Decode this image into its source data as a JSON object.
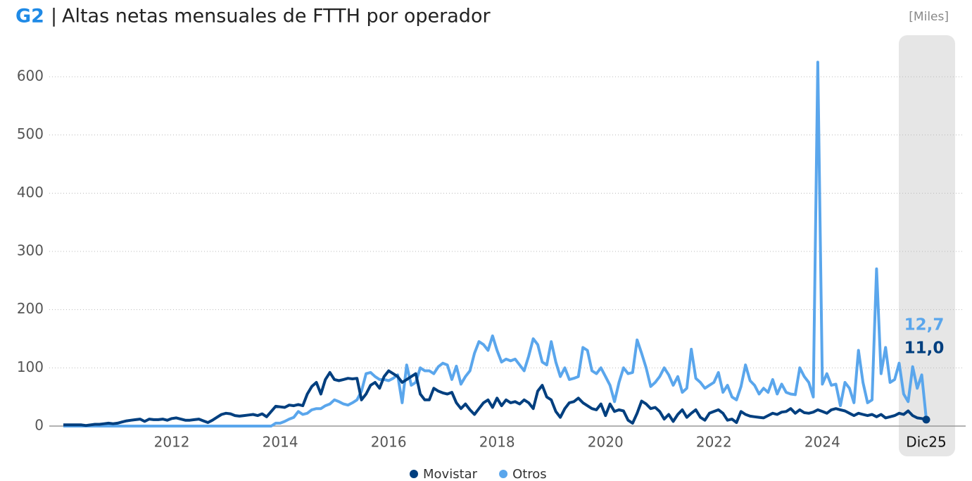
{
  "chart_data": {
    "type": "line",
    "title_tag": "G2",
    "title": "Altas netas mensuales de FTTH por operador",
    "unit": "[Miles]",
    "categories": [
      null,
      null,
      null,
      null,
      null,
      null,
      null,
      null,
      null,
      null,
      null,
      null,
      null,
      null,
      null,
      null,
      null,
      null,
      null,
      null,
      null,
      null,
      null,
      null,
      "2012",
      null,
      null,
      null,
      null,
      null,
      null,
      null,
      null,
      null,
      null,
      null,
      null,
      null,
      null,
      null,
      null,
      null,
      null,
      null,
      null,
      null,
      null,
      null,
      "2014",
      null,
      null,
      null,
      null,
      null,
      null,
      null,
      null,
      null,
      null,
      null,
      null,
      null,
      null,
      null,
      null,
      null,
      null,
      null,
      null,
      null,
      null,
      null,
      "2016",
      null,
      null,
      null,
      null,
      null,
      null,
      null,
      null,
      null,
      null,
      null,
      null,
      null,
      null,
      null,
      null,
      null,
      null,
      null,
      null,
      null,
      null,
      null,
      "2018",
      null,
      null,
      null,
      null,
      null,
      null,
      null,
      null,
      null,
      null,
      null,
      null,
      null,
      null,
      null,
      null,
      null,
      null,
      null,
      null,
      null,
      null,
      null,
      "2020",
      null,
      null,
      null,
      null,
      null,
      null,
      null,
      null,
      null,
      null,
      null,
      null,
      null,
      null,
      null,
      null,
      null,
      null,
      null,
      null,
      null,
      null,
      null,
      "2022",
      null,
      null,
      null,
      null,
      null,
      null,
      null,
      null,
      null,
      null,
      null,
      null,
      null,
      null,
      null,
      null,
      null,
      null,
      null,
      null,
      null,
      null,
      null,
      "2024",
      null,
      null,
      null,
      null,
      null,
      null,
      null,
      null,
      null,
      null,
      null,
      null,
      null,
      null,
      null,
      null,
      null,
      null,
      null,
      null,
      null,
      null,
      "Dic25"
    ],
    "series": [
      {
        "name": "Movistar",
        "color": "#003f7f",
        "end_label": "11,0",
        "values": [
          2,
          2,
          2,
          2,
          2,
          1,
          2,
          3,
          3,
          4,
          5,
          4,
          5,
          7,
          9,
          10,
          11,
          12,
          8,
          12,
          11,
          11,
          12,
          10,
          13,
          14,
          12,
          10,
          10,
          11,
          12,
          9,
          6,
          10,
          15,
          20,
          22,
          21,
          18,
          17,
          18,
          19,
          20,
          18,
          21,
          16,
          25,
          34,
          33,
          32,
          36,
          35,
          37,
          35,
          55,
          68,
          75,
          55,
          80,
          92,
          80,
          78,
          80,
          82,
          81,
          82,
          45,
          55,
          70,
          75,
          65,
          85,
          95,
          90,
          85,
          75,
          80,
          85,
          90,
          55,
          45,
          45,
          65,
          60,
          57,
          55,
          58,
          40,
          30,
          38,
          28,
          20,
          30,
          40,
          45,
          32,
          48,
          35,
          45,
          40,
          42,
          38,
          45,
          40,
          30,
          60,
          70,
          50,
          45,
          25,
          15,
          30,
          40,
          42,
          48,
          40,
          35,
          30,
          28,
          38,
          18,
          38,
          25,
          28,
          26,
          10,
          5,
          22,
          43,
          38,
          30,
          32,
          25,
          12,
          20,
          8,
          20,
          28,
          15,
          22,
          28,
          15,
          10,
          22,
          25,
          28,
          22,
          10,
          12,
          6,
          25,
          20,
          17,
          16,
          15,
          14,
          18,
          22,
          20,
          24,
          25,
          30,
          22,
          28,
          23,
          22,
          24,
          28,
          25,
          22,
          28,
          30,
          28,
          26,
          22,
          18,
          22,
          20,
          18,
          20,
          16,
          20,
          14,
          16,
          18,
          22,
          20,
          26,
          18,
          14,
          13,
          11.0
        ]
      },
      {
        "name": "Otros",
        "color": "#5aa6ec",
        "end_label": "12,7",
        "values": [
          0,
          0,
          0,
          0,
          0,
          0,
          0,
          0,
          0,
          0,
          0,
          0,
          0,
          0,
          0,
          0,
          0,
          0,
          0,
          0,
          0,
          0,
          0,
          0,
          0,
          0,
          0,
          0,
          0,
          0,
          0,
          0,
          0,
          0,
          0,
          0,
          0,
          0,
          0,
          0,
          0,
          0,
          0,
          0,
          0,
          0,
          0,
          5,
          5,
          8,
          12,
          15,
          25,
          20,
          22,
          28,
          30,
          30,
          35,
          38,
          45,
          42,
          38,
          36,
          40,
          45,
          60,
          90,
          92,
          85,
          80,
          80,
          78,
          82,
          88,
          40,
          105,
          70,
          75,
          100,
          95,
          95,
          90,
          102,
          108,
          105,
          80,
          103,
          72,
          85,
          95,
          125,
          145,
          140,
          130,
          155,
          130,
          110,
          115,
          112,
          115,
          105,
          95,
          120,
          150,
          140,
          110,
          105,
          145,
          110,
          85,
          100,
          80,
          82,
          85,
          135,
          130,
          95,
          90,
          100,
          85,
          70,
          42,
          75,
          100,
          90,
          92,
          148,
          125,
          100,
          68,
          75,
          85,
          100,
          88,
          70,
          85,
          58,
          65,
          132,
          82,
          75,
          65,
          70,
          75,
          92,
          58,
          70,
          50,
          45,
          68,
          105,
          78,
          70,
          55,
          65,
          58,
          80,
          55,
          72,
          58,
          55,
          54,
          100,
          85,
          75,
          50,
          625,
          72,
          90,
          70,
          72,
          35,
          75,
          65,
          40,
          130,
          75,
          40,
          45,
          270,
          90,
          135,
          75,
          80,
          108,
          55,
          42,
          102,
          65,
          88,
          12.7
        ]
      }
    ],
    "ylim": [
      0,
      600
    ],
    "yticks": [
      0,
      100,
      200,
      300,
      400,
      500,
      600
    ],
    "grid": true,
    "legend": "bottom"
  }
}
